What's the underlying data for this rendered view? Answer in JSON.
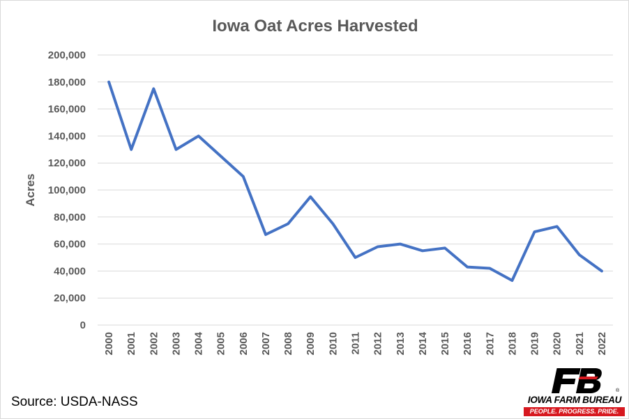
{
  "chart_data": {
    "type": "line",
    "title": "Iowa Oat Acres Harvested",
    "xlabel": "",
    "ylabel": "Acres",
    "ylim": [
      0,
      200000
    ],
    "yticks": [
      0,
      20000,
      40000,
      60000,
      80000,
      100000,
      120000,
      140000,
      160000,
      180000,
      200000
    ],
    "ytick_labels": [
      "0",
      "20,000",
      "40,000",
      "60,000",
      "80,000",
      "100,000",
      "120,000",
      "140,000",
      "160,000",
      "180,000",
      "200,000"
    ],
    "grid": true,
    "legend": "none",
    "categories": [
      "2000",
      "2001",
      "2002",
      "2003",
      "2004",
      "2005",
      "2006",
      "2007",
      "2008",
      "2009",
      "2010",
      "2011",
      "2012",
      "2013",
      "2014",
      "2015",
      "2016",
      "2017",
      "2018",
      "2019",
      "2020",
      "2021",
      "2022"
    ],
    "series": [
      {
        "color": "#4472c4",
        "values": [
          180000,
          130000,
          175000,
          130000,
          140000,
          125000,
          110000,
          67000,
          75000,
          95000,
          75000,
          50000,
          58000,
          60000,
          55000,
          57000,
          43000,
          42000,
          33000,
          69000,
          73000,
          52000,
          40000
        ]
      }
    ]
  },
  "source": "Source: USDA-NASS",
  "logo": {
    "name": "IOWA FARM BUREAU",
    "tagline": "PEOPLE. PROGRESS. PRIDE.",
    "registered_mark": "®",
    "colors": {
      "mark": "#000000",
      "accent": "#d71920"
    }
  }
}
